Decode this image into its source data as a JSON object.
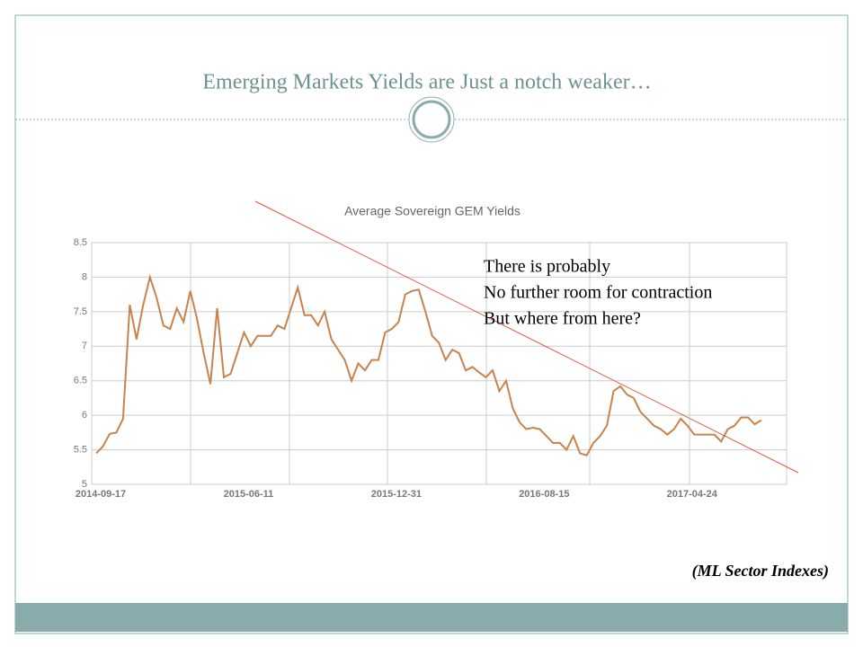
{
  "title": "Emerging Markets Yields are Just a notch weaker…",
  "chart_data": {
    "type": "line",
    "title": "Average Sovereign GEM Yields",
    "categories": [
      "2014-09-17",
      null,
      null,
      null,
      null,
      null,
      null,
      null,
      null,
      null,
      null,
      null,
      null,
      null,
      null,
      null,
      null,
      null,
      null,
      null,
      null,
      null,
      "2015-06-11",
      null,
      null,
      null,
      null,
      null,
      null,
      null,
      null,
      null,
      null,
      null,
      null,
      null,
      null,
      null,
      null,
      null,
      null,
      null,
      null,
      null,
      "2015-12-31",
      null,
      null,
      null,
      null,
      null,
      null,
      null,
      null,
      null,
      null,
      null,
      null,
      null,
      null,
      null,
      null,
      null,
      null,
      null,
      null,
      null,
      "2016-08-15",
      null,
      null,
      null,
      null,
      null,
      null,
      null,
      null,
      null,
      null,
      null,
      null,
      null,
      null,
      null,
      null,
      null,
      null,
      null,
      null,
      null,
      "2017-04-24",
      null,
      null,
      null,
      null,
      null,
      null,
      null,
      null,
      null,
      null,
      null
    ],
    "values": [
      5.45,
      5.55,
      5.73,
      5.75,
      5.95,
      7.6,
      7.1,
      7.6,
      8.0,
      7.7,
      7.3,
      7.25,
      7.55,
      7.35,
      7.8,
      7.4,
      6.9,
      6.45,
      7.55,
      6.55,
      6.6,
      6.9,
      7.2,
      7.0,
      7.15,
      7.15,
      7.15,
      7.3,
      7.25,
      7.55,
      7.85,
      7.45,
      7.45,
      7.3,
      7.5,
      7.1,
      6.95,
      6.8,
      6.5,
      6.75,
      6.65,
      6.8,
      6.8,
      7.2,
      7.25,
      7.35,
      7.75,
      7.8,
      7.82,
      7.5,
      7.15,
      7.05,
      6.8,
      6.95,
      6.9,
      6.65,
      6.7,
      6.62,
      6.55,
      6.65,
      6.35,
      6.5,
      6.1,
      5.9,
      5.8,
      5.82,
      5.8,
      5.7,
      5.6,
      5.6,
      5.5,
      5.7,
      5.45,
      5.42,
      5.6,
      5.7,
      5.85,
      6.35,
      6.42,
      6.3,
      6.25,
      6.05,
      5.95,
      5.85,
      5.8,
      5.72,
      5.8,
      5.95,
      5.85,
      5.72,
      5.72,
      5.72,
      5.72,
      5.62,
      5.8,
      5.85,
      5.97,
      5.97,
      5.87,
      5.93
    ],
    "color": "#c8834c",
    "ylim": [
      5,
      8.5
    ],
    "yticks": [
      5,
      5.5,
      6,
      6.5,
      7,
      7.5,
      8,
      8.5
    ],
    "grid": true
  },
  "annotation": [
    "There is probably",
    "No further room for contraction",
    "But where from here?"
  ],
  "source": "(ML Sector Indexes)"
}
